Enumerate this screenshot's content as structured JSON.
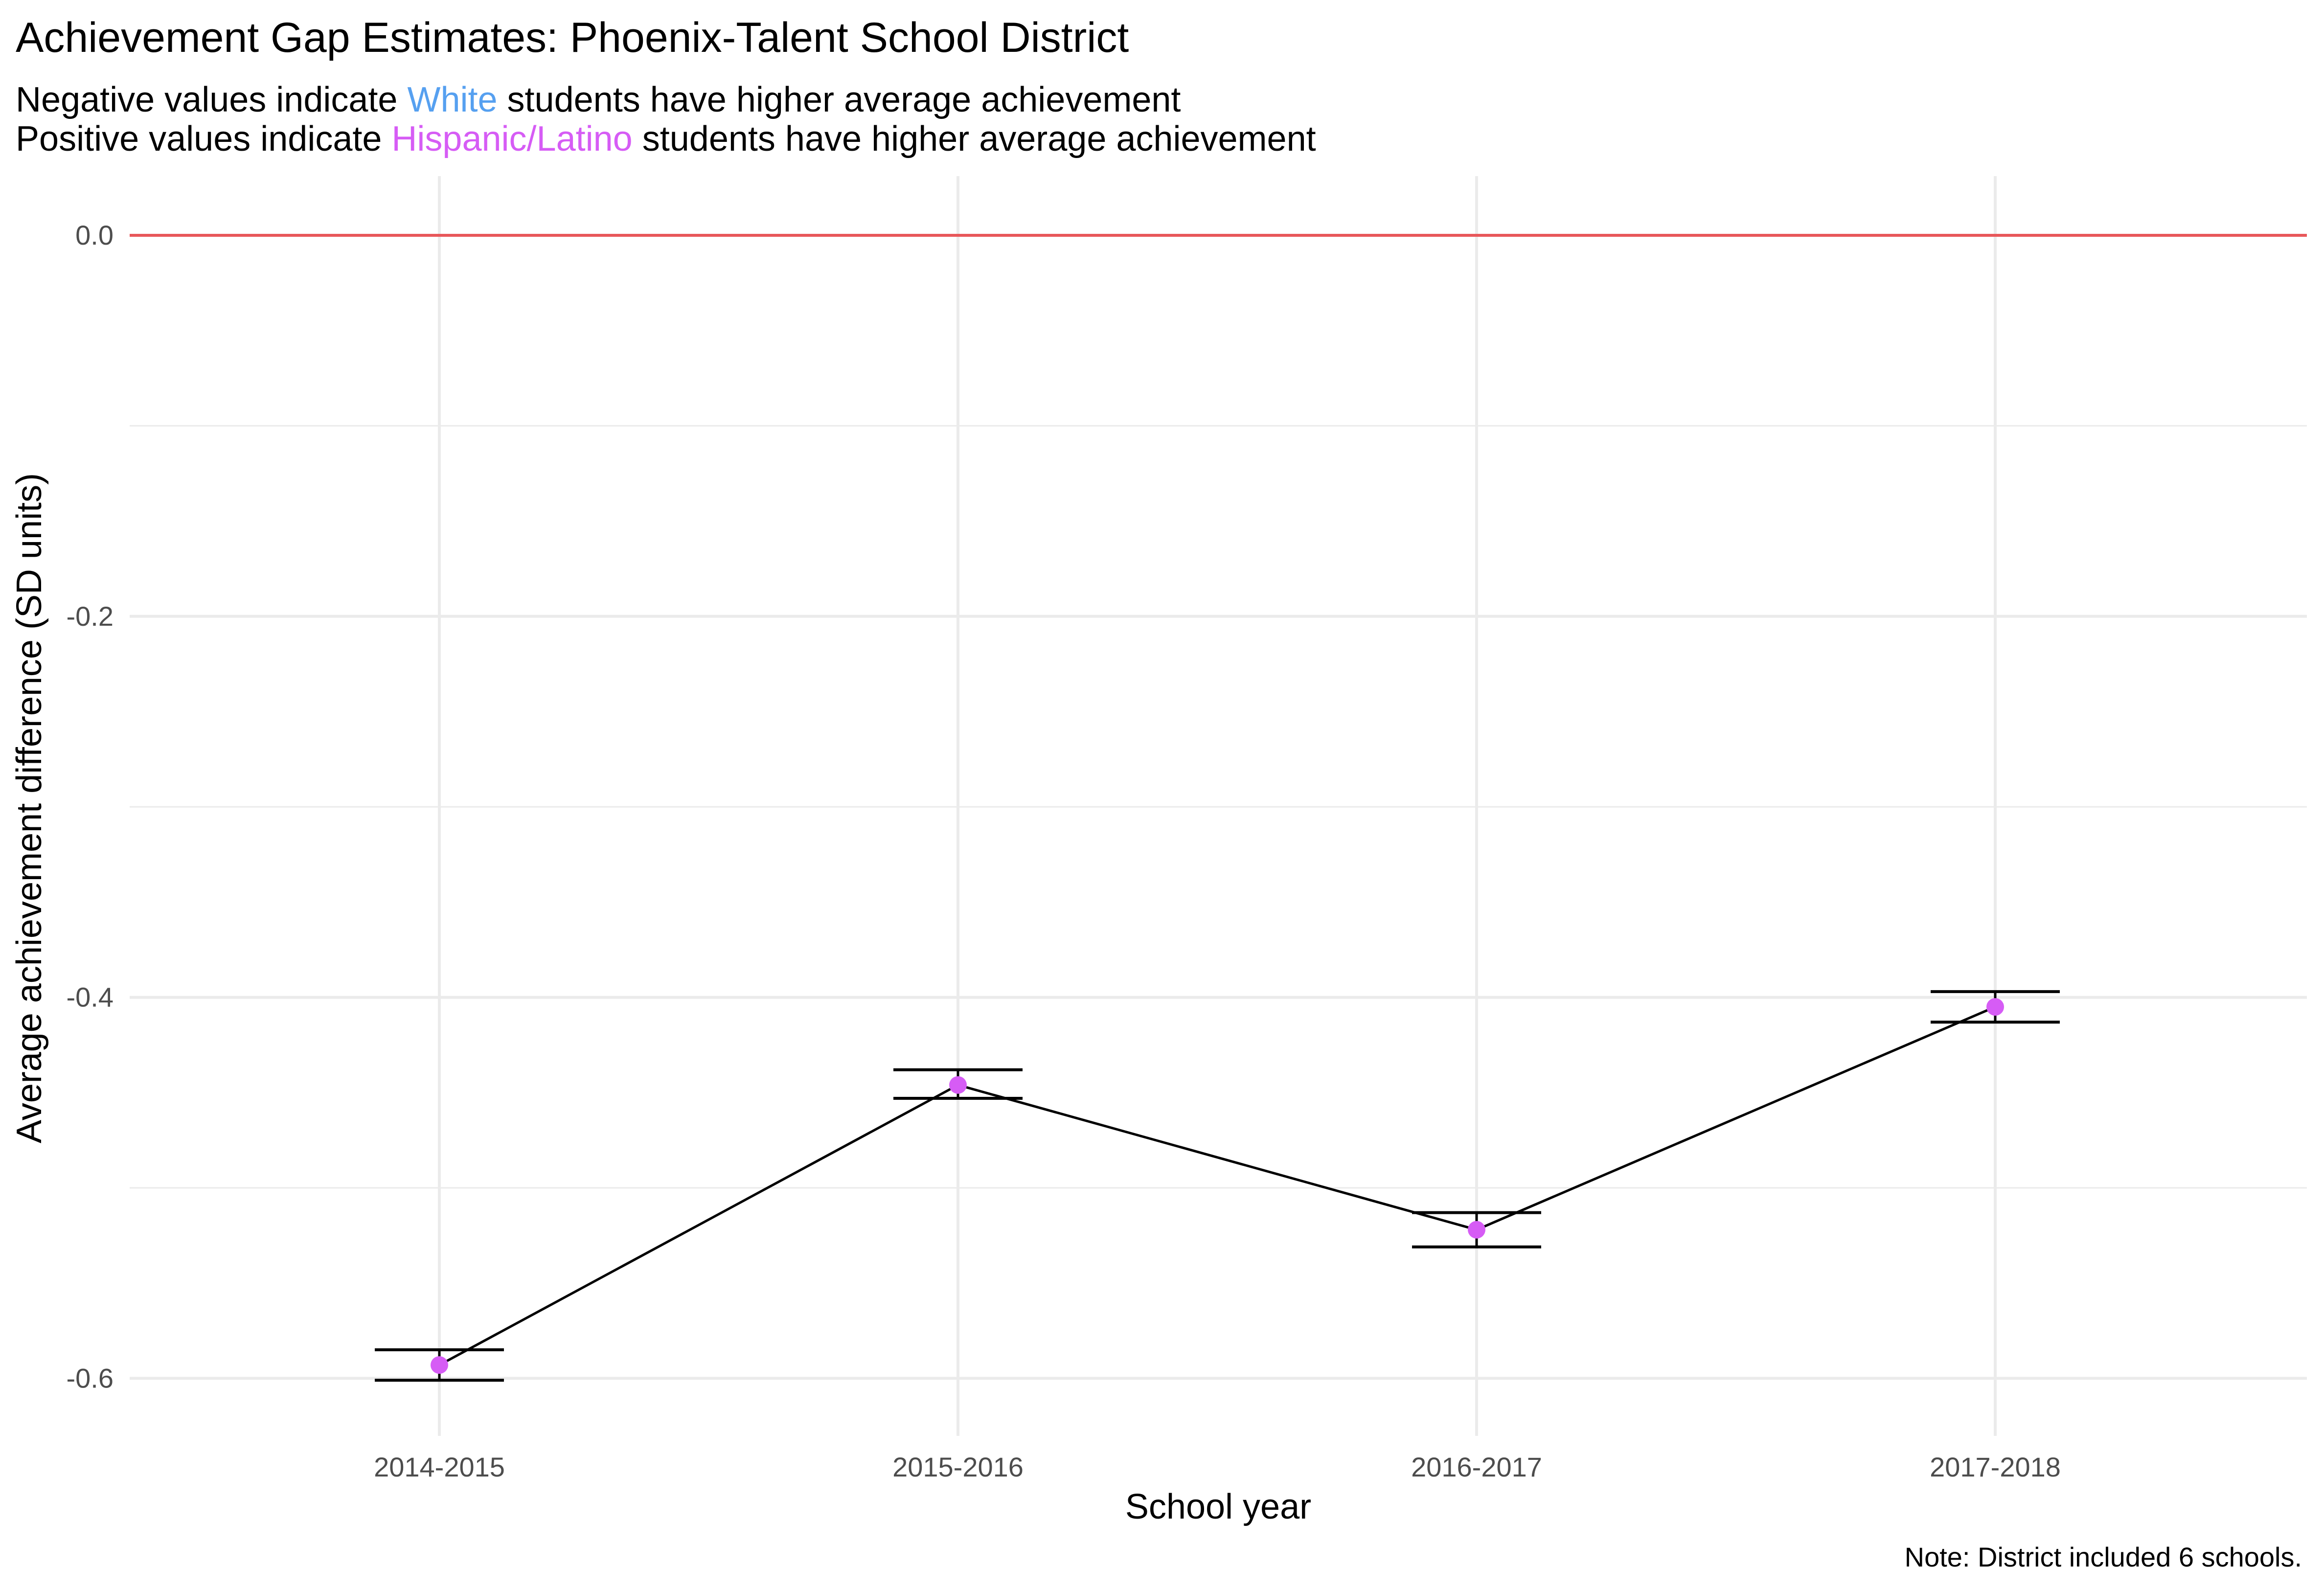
{
  "chart_data": {
    "type": "line",
    "title": "Achievement Gap Estimates: Phoenix-Talent School District",
    "subtitle": {
      "line1": {
        "before": "Negative values indicate ",
        "highlight": "White",
        "after": " students have higher average achievement",
        "highlight_color": "#56a0f0"
      },
      "line2": {
        "before": "Positive values indicate ",
        "highlight": "Hispanic/Latino",
        "after": " students have higher average achievement",
        "highlight_color": "#d65cf5"
      }
    },
    "xlabel": "School year",
    "ylabel": "Average achievement difference (SD units)",
    "caption": "Note: District included 6 schools.",
    "categories": [
      "2014-2015",
      "2015-2016",
      "2016-2017",
      "2017-2018"
    ],
    "values": [
      -0.593,
      -0.446,
      -0.522,
      -0.405
    ],
    "error_low": [
      -0.601,
      -0.453,
      -0.531,
      -0.413
    ],
    "error_high": [
      -0.585,
      -0.438,
      -0.513,
      -0.397
    ],
    "ylim": [
      -0.625,
      0.03
    ],
    "yticks": [
      0.0,
      -0.2,
      -0.4,
      -0.6
    ],
    "ytick_labels": [
      "0.0",
      "-0.2",
      "-0.4",
      "-0.6"
    ],
    "reference_line": 0.0,
    "grid": true,
    "colors": {
      "point": "#d65cf5",
      "line": "#000000",
      "reference_line": "#e8575a",
      "grid": "#ebebeb"
    }
  }
}
